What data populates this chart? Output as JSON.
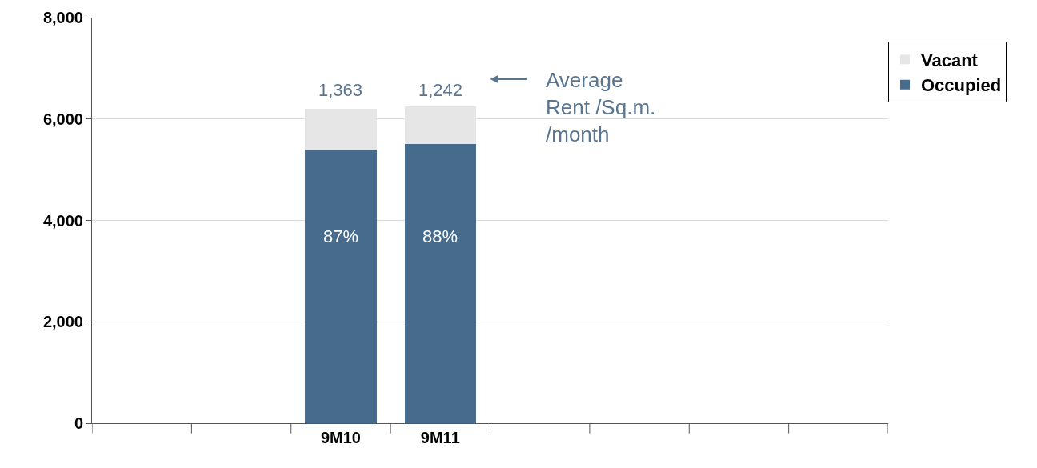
{
  "chart_data": {
    "type": "bar",
    "stacked": true,
    "categories": [
      null,
      null,
      "9M10",
      "9M11",
      null,
      null,
      null,
      null
    ],
    "series": [
      {
        "name": "Occupied",
        "color": "#466b8d",
        "values": [
          null,
          null,
          5400,
          5500,
          null,
          null,
          null,
          null
        ]
      },
      {
        "name": "Vacant",
        "color": "#e6e6e6",
        "values": [
          null,
          null,
          800,
          750,
          null,
          null,
          null,
          null
        ]
      }
    ],
    "ylim": [
      0,
      8000
    ],
    "yticks": [
      {
        "value": 0,
        "label": "0"
      },
      {
        "value": 2000,
        "label": "2,000"
      },
      {
        "value": 4000,
        "label": "4,000"
      },
      {
        "value": 6000,
        "label": "6,000"
      },
      {
        "value": 8000,
        "label": "8,000"
      }
    ],
    "grid": "y",
    "legend": "top right",
    "annotations": [
      "87%",
      "88%",
      "1,363",
      "1,242",
      "Average\nRent /Sq.m.\n/month"
    ]
  }
}
